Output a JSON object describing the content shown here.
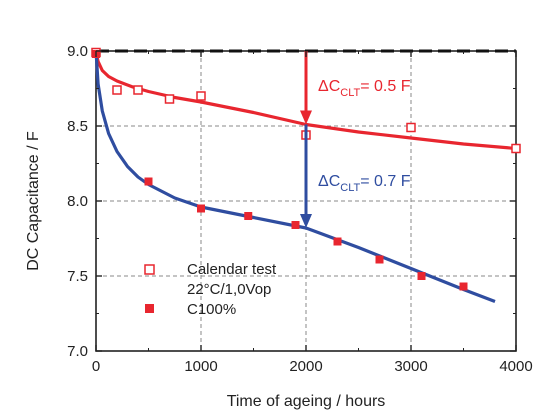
{
  "chart_data": {
    "type": "scatter",
    "xlabel": "Time of ageing / hours",
    "ylabel": "DC Capacitance / F",
    "xlim": [
      0,
      4000
    ],
    "ylim": [
      7.0,
      9.0
    ],
    "x_ticks": [
      0,
      1000,
      2000,
      3000,
      4000
    ],
    "x_tick_labels": [
      "0",
      "1000",
      "2000",
      "3000",
      "4000"
    ],
    "y_ticks": [
      7.0,
      7.5,
      8.0,
      8.5,
      9.0
    ],
    "y_tick_labels": [
      "7.0",
      "7.5",
      "8.0",
      "8.5",
      "9.0"
    ],
    "grid": true,
    "legend_position": "bottom-left",
    "reference_line": {
      "y": 9.0,
      "style": "dashed",
      "color": "#111111"
    },
    "series": [
      {
        "name": "Calendar test 22°C/1,0Vop",
        "marker": "open-square",
        "color": "#e8262f",
        "points": [
          [
            0,
            8.99
          ],
          [
            200,
            8.74
          ],
          [
            400,
            8.74
          ],
          [
            700,
            8.68
          ],
          [
            1000,
            8.7
          ],
          [
            2000,
            8.44
          ],
          [
            3000,
            8.49
          ],
          [
            4000,
            8.35
          ]
        ],
        "fit": [
          [
            0,
            8.99
          ],
          [
            20,
            8.93
          ],
          [
            60,
            8.87
          ],
          [
            120,
            8.83
          ],
          [
            200,
            8.8
          ],
          [
            350,
            8.76
          ],
          [
            500,
            8.73
          ],
          [
            750,
            8.69
          ],
          [
            1000,
            8.66
          ],
          [
            1500,
            8.59
          ],
          [
            2000,
            8.51
          ],
          [
            2500,
            8.46
          ],
          [
            3000,
            8.42
          ],
          [
            3500,
            8.38
          ],
          [
            4000,
            8.35
          ]
        ]
      },
      {
        "name": "C100%",
        "marker": "filled-square",
        "color": "#e8262f",
        "line_color": "#2f4da0",
        "points": [
          [
            0,
            8.98
          ],
          [
            500,
            8.13
          ],
          [
            1000,
            7.95
          ],
          [
            1450,
            7.9
          ],
          [
            1900,
            7.84
          ],
          [
            2300,
            7.73
          ],
          [
            2700,
            7.61
          ],
          [
            3100,
            7.5
          ],
          [
            3500,
            7.43
          ]
        ],
        "fit": [
          [
            0,
            9.0
          ],
          [
            20,
            8.78
          ],
          [
            60,
            8.6
          ],
          [
            120,
            8.45
          ],
          [
            200,
            8.33
          ],
          [
            300,
            8.23
          ],
          [
            400,
            8.16
          ],
          [
            500,
            8.11
          ],
          [
            750,
            8.02
          ],
          [
            1000,
            7.96
          ],
          [
            1500,
            7.89
          ],
          [
            2000,
            7.82
          ],
          [
            2500,
            7.69
          ],
          [
            3000,
            7.55
          ],
          [
            3500,
            7.41
          ],
          [
            3800,
            7.33
          ]
        ]
      }
    ],
    "annotations": [
      {
        "main": "ΔC",
        "sub": "CLT",
        "rest": "= 0.5 F",
        "color": "#e8262f",
        "arrow_x": 2000,
        "arrow_from": 9.0,
        "arrow_to": 8.51
      },
      {
        "main": "ΔC",
        "sub": "CLT",
        "rest": "= 0.7 F",
        "color": "#2f4da0",
        "arrow_x": 2000,
        "arrow_from": 8.51,
        "arrow_to": 7.82
      }
    ],
    "legend": {
      "entries": [
        {
          "marker": "open-square",
          "lines": [
            "Calendar test",
            "22°C/1,0Vop"
          ]
        },
        {
          "marker": "filled-square",
          "lines": [
            "C100%"
          ]
        }
      ]
    }
  }
}
